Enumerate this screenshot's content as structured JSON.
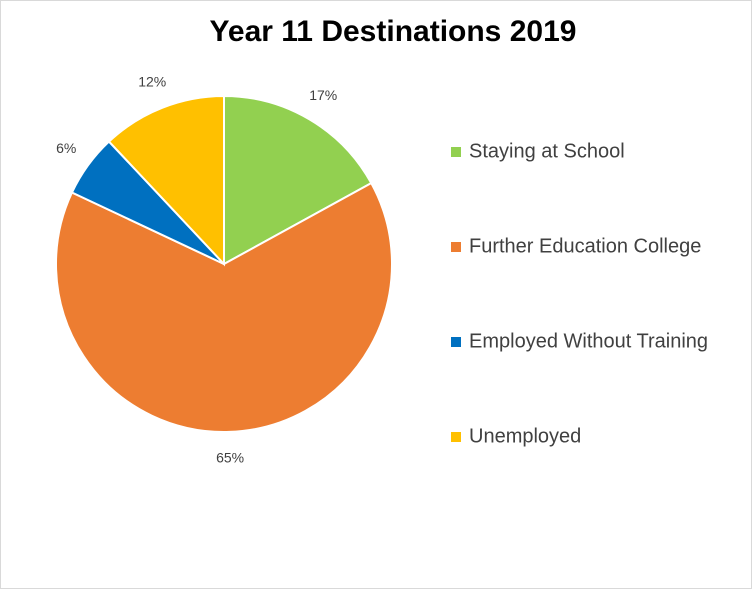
{
  "chart_data": {
    "type": "pie",
    "title": "Year 11 Destinations 2019",
    "categories": [
      "Staying at School",
      "Further Education College",
      "Employed Without Training",
      "Unemployed"
    ],
    "values": [
      17,
      65,
      6,
      12
    ],
    "value_labels": [
      "17%",
      "65%",
      "6%",
      "12%"
    ],
    "colors": [
      "#92d050",
      "#ed7d31",
      "#0070c0",
      "#ffc000"
    ],
    "legend": "right"
  }
}
